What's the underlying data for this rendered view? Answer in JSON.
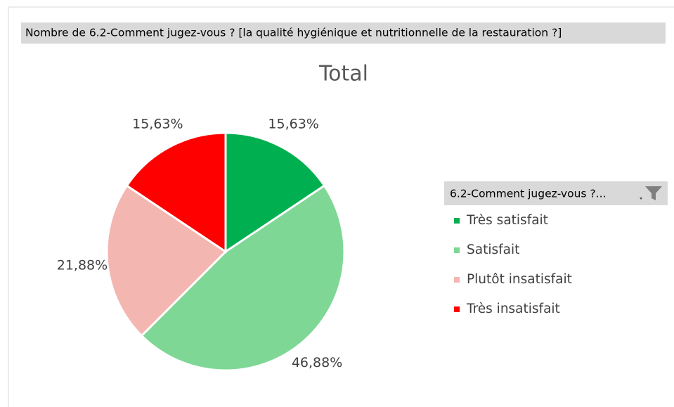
{
  "header": "Nombre de 6.2-Comment jugez-vous ? [la qualité hygiénique et nutritionnelle de la restauration ?]",
  "chart_data": {
    "type": "pie",
    "title": "Total",
    "categories": [
      "Très satisfait",
      "Satisfait",
      "Plutôt insatisfait",
      "Très insatisfait"
    ],
    "values": [
      15.63,
      46.88,
      21.88,
      15.63
    ],
    "value_labels": [
      "15,63%",
      "46,88%",
      "21,88%",
      "15,63%"
    ],
    "colors": [
      "#00b050",
      "#7fd796",
      "#f4b6b1",
      "#ff0000"
    ],
    "legend_title": "6.2-Comment jugez-vous ?...",
    "legend": "right"
  }
}
